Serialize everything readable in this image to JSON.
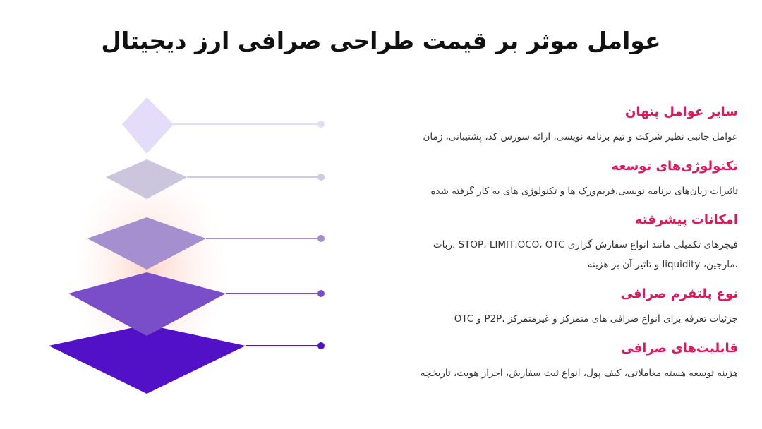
{
  "title": "عوامل موثر بر قیمت طراحی صرافی ارز دیجیتال",
  "colors": {
    "accent": "#e0165b",
    "level1": "#e4ddf9",
    "level2": "#cbc5de",
    "level3": "#a58fce",
    "level4": "#7a4ec9",
    "level5": "#5211c7",
    "glow": "#ffd2c6"
  },
  "items": [
    {
      "title": "سایر عوامل پنهان",
      "desc": [
        "عوامل جانبی نظیر شرکت و تیم برنامه نویسی، ارائه سورس کد، پشتیبانی، زمان"
      ]
    },
    {
      "title": "تکنولوژی‌های توسعه",
      "desc": [
        "تاثیرات زبان‌های برنامه نویسی،فریم‌ورک ها و تکنولوژی های به کار گرفته شده"
      ]
    },
    {
      "title": "امکانات پیشرفته",
      "desc": [
        "فیچرهای تکمیلی مانند انواع سفارش گزاری STOP، LIMIT،OCO، OTC ،ربات",
        "،مارجین، liquidity و تاثیر آن بر هزینه"
      ]
    },
    {
      "title": "نوع پلتفرم صرافی",
      "desc": [
        "جزئیات تعرفه برای انواع صرافی های متمرکز و غیرمتمرکز ،P2P و OTC"
      ]
    },
    {
      "title": "قابلیت‌های صرافی",
      "desc": [
        "هزینه توسعه هسته معاملاتی، کیف پول، انواع ثبت سفارش، احراز هویت، تاریخچه"
      ]
    }
  ]
}
